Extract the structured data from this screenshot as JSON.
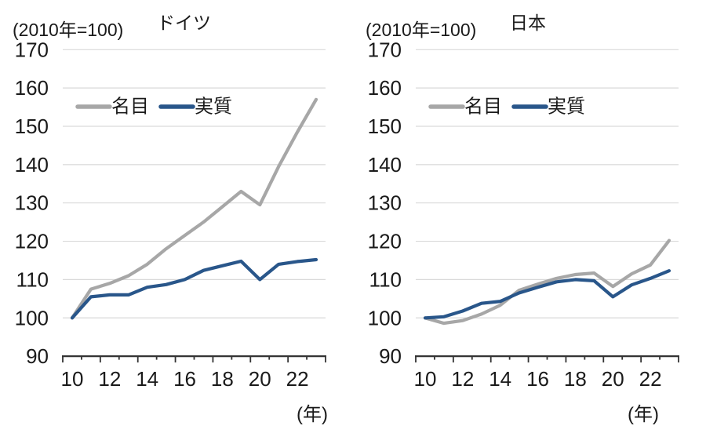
{
  "page": {
    "background": "#ffffff",
    "text_color": "#1a1a1a",
    "gridline_color": "#d9d9d9",
    "axis_color": "#333333"
  },
  "chart_data": [
    {
      "type": "line",
      "title": "ドイツ",
      "unit_note": "(2010年=100)",
      "x_unit": "(年)",
      "categories": [
        "10",
        "11",
        "12",
        "13",
        "14",
        "15",
        "16",
        "17",
        "18",
        "19",
        "20",
        "21",
        "22",
        "23"
      ],
      "x_tick_labels": [
        "10",
        "12",
        "14",
        "16",
        "18",
        "20",
        "22"
      ],
      "ylim": [
        90,
        170
      ],
      "y_ticks": [
        90,
        100,
        110,
        120,
        130,
        140,
        150,
        160,
        170
      ],
      "grid": true,
      "legend_position": "top-left-inside",
      "series": [
        {
          "name": "名目",
          "color": "#A7A7A7",
          "values": [
            100,
            107.5,
            109,
            111,
            114,
            118,
            121.5,
            125,
            129,
            133,
            129.5,
            139.5,
            148.5,
            157
          ]
        },
        {
          "name": "実質",
          "color": "#29568A",
          "values": [
            100,
            105.5,
            106,
            106,
            108,
            108.7,
            110,
            112.4,
            113.6,
            114.8,
            110,
            114,
            114.7,
            115.2
          ]
        }
      ]
    },
    {
      "type": "line",
      "title": "日本",
      "unit_note": "(2010年=100)",
      "x_unit": "(年)",
      "categories": [
        "10",
        "11",
        "12",
        "13",
        "14",
        "15",
        "16",
        "17",
        "18",
        "19",
        "20",
        "21",
        "22",
        "23"
      ],
      "x_tick_labels": [
        "10",
        "12",
        "14",
        "16",
        "18",
        "20",
        "22"
      ],
      "ylim": [
        90,
        170
      ],
      "y_ticks": [
        90,
        100,
        110,
        120,
        130,
        140,
        150,
        160,
        170
      ],
      "grid": true,
      "legend_position": "top-left-inside",
      "series": [
        {
          "name": "名目",
          "color": "#A7A7A7",
          "values": [
            100,
            98.6,
            99.3,
            101,
            103.3,
            107.2,
            108.8,
            110.3,
            111.3,
            111.7,
            108.2,
            111.5,
            113.8,
            120.2
          ]
        },
        {
          "name": "実質",
          "color": "#29568A",
          "values": [
            100,
            100.3,
            101.8,
            103.8,
            104.3,
            106.5,
            108,
            109.4,
            110,
            109.7,
            105.5,
            108.6,
            110.3,
            112.3
          ]
        }
      ]
    }
  ]
}
